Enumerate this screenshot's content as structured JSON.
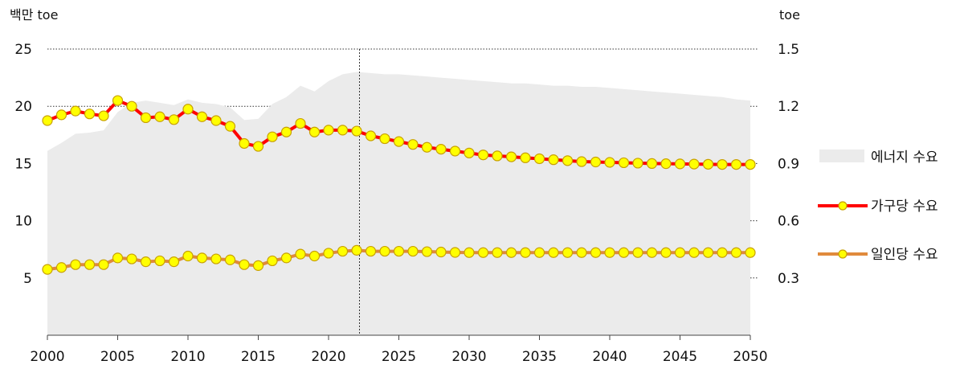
{
  "chart_data": {
    "type": "line",
    "left_unit": "백만 toe",
    "right_unit": "toe",
    "x": [
      2000,
      2001,
      2002,
      2003,
      2004,
      2005,
      2006,
      2007,
      2008,
      2009,
      2010,
      2011,
      2012,
      2013,
      2014,
      2015,
      2016,
      2017,
      2018,
      2019,
      2020,
      2021,
      2022,
      2023,
      2024,
      2025,
      2026,
      2027,
      2028,
      2029,
      2030,
      2031,
      2032,
      2033,
      2034,
      2035,
      2036,
      2037,
      2038,
      2039,
      2040,
      2041,
      2042,
      2043,
      2044,
      2045,
      2046,
      2047,
      2048,
      2049,
      2050
    ],
    "x_ticks": [
      "2000",
      "2005",
      "2010",
      "2015",
      "2020",
      "2025",
      "2030",
      "2035",
      "2040",
      "2045",
      "2050"
    ],
    "x_tick_values": [
      2000,
      2005,
      2010,
      2015,
      2020,
      2025,
      2030,
      2035,
      2040,
      2045,
      2050
    ],
    "y_left_ticks": [
      "5",
      "10",
      "15",
      "20",
      "25"
    ],
    "y_left_tick_values": [
      5,
      10,
      15,
      20,
      25
    ],
    "y_left_range": [
      0,
      25
    ],
    "y_right_ticks": [
      "0.3",
      "0.6",
      "0.9",
      "1.2",
      "1.5"
    ],
    "y_right_tick_values": [
      0.3,
      0.6,
      0.9,
      1.2,
      1.5
    ],
    "y_right_range": [
      0,
      1.5
    ],
    "divider_year": 2022.2,
    "series": [
      {
        "name": "에너지 수요",
        "kind": "area",
        "axis": "left",
        "color": "#ebebeb",
        "values": [
          16.1,
          16.8,
          17.6,
          17.7,
          17.9,
          19.5,
          20.3,
          20.5,
          20.3,
          20.1,
          20.6,
          20.3,
          20.2,
          19.9,
          18.8,
          18.9,
          20.2,
          20.8,
          21.8,
          21.3,
          22.2,
          22.8,
          23.0,
          22.9,
          22.8,
          22.8,
          22.7,
          22.6,
          22.5,
          22.4,
          22.3,
          22.2,
          22.1,
          22.0,
          22.0,
          21.9,
          21.8,
          21.8,
          21.7,
          21.7,
          21.6,
          21.5,
          21.4,
          21.3,
          21.2,
          21.1,
          21.0,
          20.9,
          20.8,
          20.6,
          20.5
        ]
      },
      {
        "name": "가구당 수요",
        "kind": "line",
        "axis": "right",
        "color": "#ff0000",
        "marker_fill": "#ffff00",
        "marker_edge": "#c8a000",
        "values": [
          1.125,
          1.155,
          1.175,
          1.16,
          1.15,
          1.23,
          1.2,
          1.14,
          1.145,
          1.13,
          1.185,
          1.145,
          1.125,
          1.095,
          1.005,
          0.99,
          1.04,
          1.065,
          1.11,
          1.065,
          1.075,
          1.075,
          1.07,
          1.045,
          1.03,
          1.015,
          1.0,
          0.985,
          0.975,
          0.965,
          0.955,
          0.945,
          0.94,
          0.935,
          0.93,
          0.925,
          0.92,
          0.915,
          0.91,
          0.908,
          0.906,
          0.904,
          0.902,
          0.9,
          0.899,
          0.898,
          0.897,
          0.896,
          0.895,
          0.895,
          0.895
        ]
      },
      {
        "name": "일인당 수요",
        "kind": "line",
        "axis": "right",
        "color": "#e08a3c",
        "marker_fill": "#ffff00",
        "marker_edge": "#c8a000",
        "values": [
          0.345,
          0.355,
          0.37,
          0.37,
          0.37,
          0.405,
          0.4,
          0.385,
          0.39,
          0.385,
          0.415,
          0.405,
          0.4,
          0.395,
          0.37,
          0.365,
          0.39,
          0.405,
          0.425,
          0.415,
          0.43,
          0.44,
          0.445,
          0.44,
          0.44,
          0.44,
          0.44,
          0.438,
          0.436,
          0.434,
          0.433,
          0.433,
          0.433,
          0.433,
          0.433,
          0.433,
          0.433,
          0.433,
          0.433,
          0.433,
          0.433,
          0.433,
          0.433,
          0.433,
          0.433,
          0.433,
          0.433,
          0.433,
          0.433,
          0.433,
          0.433
        ]
      }
    ]
  }
}
